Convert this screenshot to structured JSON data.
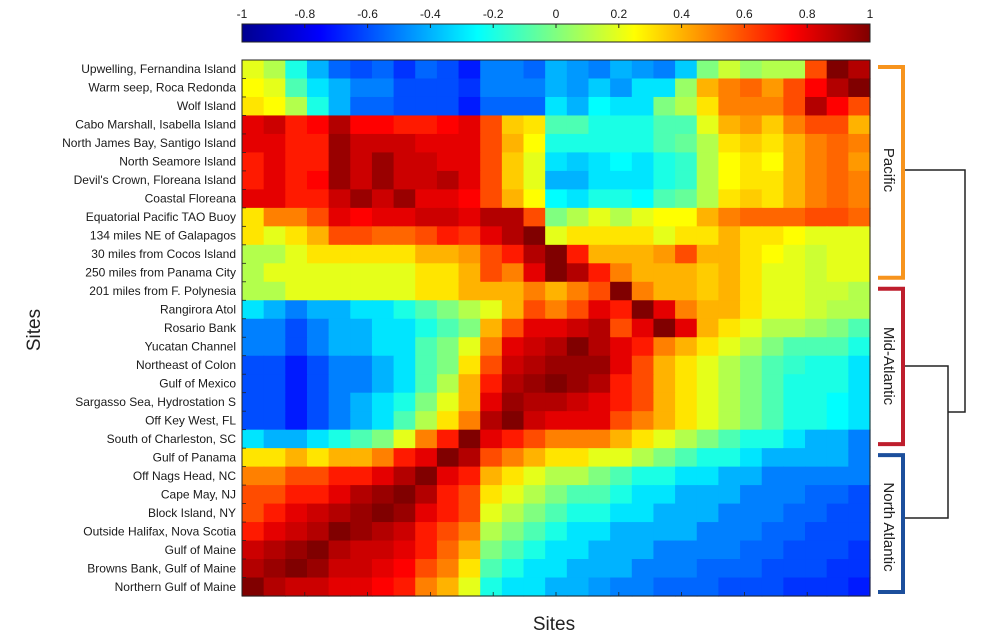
{
  "chart_data": {
    "type": "heatmap",
    "xlabel": "Sites",
    "ylabel": "Sites",
    "sites": [
      "Upwelling, Fernandina Island",
      "Warm seep, Roca Redonda",
      "Wolf Island",
      "Cabo Marshall, Isabella Island",
      "North James Bay, Santigo Island",
      "North Seamore Island",
      "Devil's Crown, Floreana Island",
      "Coastal Floreana",
      "Equatorial Pacific TAO Buoy",
      "134 miles NE of Galapagos",
      "30 miles from Cocos Island",
      "250 miles from Panama City",
      "201 miles from F. Polynesia",
      "Rangirora Atol",
      "Rosario Bank",
      "Yucatan Channel",
      "Northeast of Colon",
      "Gulf of Mexico",
      "Sargasso Sea, Hydrostation S",
      "Off Key West, FL",
      "South of Charleston, SC",
      "Gulf of Panama",
      "Off Nags Head, NC",
      "Cape May, NJ",
      "Block Island, NY",
      "Outside Halifax, Nova Scotia",
      "Gulf of Maine",
      "Browns Bank, Gulf of Maine",
      "Northern Gulf of Maine"
    ],
    "colorbar": {
      "min": -1,
      "max": 1,
      "ticks": [
        "-1",
        "-0.8",
        "-0.6",
        "-0.4",
        "-0.2",
        "0",
        "0.2",
        "0.4",
        "0.6",
        "0.8",
        "1"
      ],
      "colormap": "jet"
    },
    "groups": [
      {
        "name": "Pacific",
        "color": "#f7941d",
        "first_row": 0,
        "last_row": 11
      },
      {
        "name": "Mid-Atlantic",
        "color": "#be1e2d",
        "first_row": 12,
        "last_row": 20
      },
      {
        "name": "North Atlantic",
        "color": "#1c4f9c",
        "first_row": 21,
        "last_row": 28
      }
    ],
    "dendrogram": "North Atlantic and Mid-Atlantic join first, then join Pacific",
    "note": "Cell values are approximate correlations from -1 to 1; row order is listed top to bottom, columns in reverse order (Northern Gulf of Maine at left).",
    "values": [
      [
        0.2,
        0.1,
        -0.2,
        -0.4,
        -0.55,
        -0.6,
        -0.55,
        -0.65,
        -0.55,
        -0.6,
        -0.7,
        -0.5,
        -0.5,
        -0.55,
        -0.4,
        -0.45,
        -0.5,
        -0.4,
        -0.45,
        -0.5,
        -0.35,
        0.0,
        0.15,
        0.05,
        0.1,
        0.1,
        0.6,
        1.0,
        0.9
      ],
      [
        0.25,
        0.2,
        -0.1,
        -0.3,
        -0.4,
        -0.5,
        -0.5,
        -0.6,
        -0.6,
        -0.6,
        -0.65,
        -0.5,
        -0.5,
        -0.5,
        -0.4,
        -0.45,
        -0.35,
        -0.45,
        -0.3,
        -0.3,
        0.05,
        0.4,
        0.5,
        0.55,
        0.45,
        0.6,
        0.75,
        0.9,
        1.0
      ],
      [
        0.3,
        0.25,
        0.1,
        -0.2,
        -0.4,
        -0.55,
        -0.55,
        -0.6,
        -0.6,
        -0.6,
        -0.7,
        -0.55,
        -0.55,
        -0.55,
        -0.3,
        -0.4,
        -0.25,
        -0.3,
        -0.3,
        0.0,
        0.1,
        0.3,
        0.5,
        0.5,
        0.5,
        0.6,
        0.9,
        0.75,
        0.6
      ],
      [
        0.8,
        0.85,
        0.7,
        0.75,
        0.9,
        0.75,
        0.75,
        0.7,
        0.7,
        0.75,
        0.8,
        0.6,
        0.35,
        0.3,
        -0.1,
        -0.1,
        -0.2,
        -0.2,
        -0.2,
        -0.1,
        -0.1,
        0.2,
        0.4,
        0.45,
        0.35,
        0.5,
        0.6,
        0.6,
        0.4
      ],
      [
        0.8,
        0.8,
        0.7,
        0.7,
        0.95,
        0.85,
        0.85,
        0.85,
        0.8,
        0.8,
        0.8,
        0.6,
        0.4,
        0.25,
        -0.2,
        -0.2,
        -0.2,
        -0.2,
        -0.2,
        -0.1,
        -0.05,
        0.1,
        0.3,
        0.35,
        0.3,
        0.4,
        0.5,
        0.55,
        0.5
      ],
      [
        0.7,
        0.8,
        0.7,
        0.7,
        0.95,
        0.85,
        0.95,
        0.85,
        0.85,
        0.8,
        0.8,
        0.6,
        0.35,
        0.2,
        -0.3,
        -0.35,
        -0.3,
        -0.25,
        -0.3,
        -0.2,
        -0.15,
        0.1,
        0.25,
        0.3,
        0.25,
        0.4,
        0.5,
        0.55,
        0.45
      ],
      [
        0.7,
        0.8,
        0.7,
        0.75,
        0.95,
        0.85,
        0.95,
        0.85,
        0.85,
        0.9,
        0.8,
        0.6,
        0.35,
        0.2,
        -0.4,
        -0.4,
        -0.3,
        -0.3,
        -0.3,
        -0.2,
        -0.15,
        0.1,
        0.25,
        0.3,
        0.3,
        0.4,
        0.5,
        0.55,
        0.5
      ],
      [
        0.8,
        0.8,
        0.7,
        0.7,
        0.85,
        0.95,
        0.85,
        0.95,
        0.8,
        0.8,
        0.75,
        0.6,
        0.4,
        0.25,
        -0.25,
        -0.3,
        -0.2,
        -0.2,
        -0.25,
        -0.1,
        -0.05,
        0.1,
        0.3,
        0.35,
        0.3,
        0.4,
        0.5,
        0.55,
        0.5
      ],
      [
        0.3,
        0.5,
        0.5,
        0.6,
        0.8,
        0.75,
        0.8,
        0.8,
        0.85,
        0.85,
        0.8,
        0.9,
        0.9,
        0.6,
        0.0,
        0.1,
        0.2,
        0.1,
        0.2,
        0.25,
        0.25,
        0.4,
        0.5,
        0.55,
        0.55,
        0.55,
        0.6,
        0.6,
        0.55
      ],
      [
        0.3,
        0.2,
        0.3,
        0.4,
        0.6,
        0.6,
        0.55,
        0.55,
        0.6,
        0.7,
        0.65,
        0.8,
        0.9,
        1.0,
        0.2,
        0.3,
        0.3,
        0.3,
        0.3,
        0.2,
        0.3,
        0.3,
        0.4,
        0.3,
        0.3,
        0.25,
        0.2,
        0.2,
        0.2
      ],
      [
        0.1,
        0.1,
        0.2,
        0.3,
        0.3,
        0.3,
        0.3,
        0.3,
        0.4,
        0.4,
        0.45,
        0.6,
        0.7,
        0.9,
        1.0,
        0.7,
        0.4,
        0.4,
        0.4,
        0.45,
        0.6,
        0.4,
        0.4,
        0.3,
        0.25,
        0.2,
        0.15,
        0.2,
        0.2
      ],
      [
        0.1,
        0.2,
        0.2,
        0.2,
        0.2,
        0.2,
        0.2,
        0.2,
        0.3,
        0.3,
        0.4,
        0.6,
        0.5,
        0.8,
        1.0,
        0.9,
        0.7,
        0.5,
        0.4,
        0.4,
        0.4,
        0.35,
        0.4,
        0.3,
        0.2,
        0.2,
        0.15,
        0.2,
        0.2
      ],
      [
        0.1,
        0.1,
        0.2,
        0.2,
        0.2,
        0.2,
        0.2,
        0.2,
        0.3,
        0.3,
        0.4,
        0.4,
        0.4,
        0.5,
        0.4,
        0.5,
        0.6,
        1.0,
        0.5,
        0.4,
        0.4,
        0.35,
        0.4,
        0.3,
        0.2,
        0.2,
        0.15,
        0.15,
        0.1
      ],
      [
        -0.3,
        -0.4,
        -0.5,
        -0.4,
        -0.4,
        -0.3,
        -0.3,
        -0.2,
        -0.1,
        0.0,
        0.1,
        0.2,
        0.4,
        0.6,
        0.5,
        0.6,
        0.8,
        0.7,
        1.0,
        0.8,
        0.5,
        0.4,
        0.4,
        0.3,
        0.2,
        0.2,
        0.15,
        0.1,
        0.1
      ],
      [
        -0.5,
        -0.5,
        -0.6,
        -0.5,
        -0.4,
        -0.4,
        -0.3,
        -0.3,
        -0.2,
        -0.1,
        0.0,
        0.4,
        0.6,
        0.8,
        0.8,
        0.85,
        0.9,
        0.6,
        0.8,
        1.0,
        0.8,
        0.4,
        0.3,
        0.2,
        0.1,
        0.1,
        0.05,
        0.0,
        -0.1
      ],
      [
        -0.5,
        -0.5,
        -0.6,
        -0.5,
        -0.4,
        -0.4,
        -0.3,
        -0.3,
        -0.1,
        0.0,
        0.2,
        0.5,
        0.8,
        0.85,
        0.9,
        1.0,
        0.9,
        0.8,
        0.7,
        0.5,
        0.4,
        0.3,
        0.2,
        0.1,
        0.0,
        -0.1,
        -0.1,
        -0.1,
        -0.2
      ],
      [
        -0.6,
        -0.6,
        -0.7,
        -0.6,
        -0.5,
        -0.5,
        -0.4,
        -0.3,
        -0.1,
        0.0,
        0.3,
        0.6,
        0.85,
        0.9,
        0.95,
        0.95,
        0.95,
        0.8,
        0.6,
        0.4,
        0.3,
        0.2,
        0.1,
        0.0,
        -0.1,
        -0.15,
        -0.2,
        -0.2,
        -0.3
      ],
      [
        -0.6,
        -0.6,
        -0.7,
        -0.6,
        -0.5,
        -0.5,
        -0.4,
        -0.3,
        -0.1,
        0.1,
        0.4,
        0.7,
        0.9,
        0.95,
        1.0,
        0.95,
        0.9,
        0.7,
        0.6,
        0.4,
        0.3,
        0.2,
        0.1,
        0.0,
        -0.1,
        -0.2,
        -0.2,
        -0.2,
        -0.3
      ],
      [
        -0.6,
        -0.6,
        -0.7,
        -0.6,
        -0.5,
        -0.4,
        -0.3,
        -0.2,
        0.0,
        0.2,
        0.4,
        0.8,
        0.95,
        0.9,
        0.9,
        0.85,
        0.8,
        0.7,
        0.6,
        0.4,
        0.3,
        0.2,
        0.1,
        0.0,
        -0.1,
        -0.2,
        -0.2,
        -0.25,
        -0.3
      ],
      [
        -0.6,
        -0.6,
        -0.7,
        -0.6,
        -0.5,
        -0.4,
        -0.3,
        -0.1,
        0.1,
        0.3,
        0.5,
        0.9,
        1.0,
        0.85,
        0.8,
        0.8,
        0.8,
        0.6,
        0.5,
        0.4,
        0.3,
        0.2,
        0.1,
        0.0,
        -0.1,
        -0.2,
        -0.2,
        -0.25,
        -0.3
      ],
      [
        -0.3,
        -0.4,
        -0.4,
        -0.3,
        -0.2,
        -0.1,
        0.0,
        0.2,
        0.5,
        0.7,
        1.0,
        0.8,
        0.7,
        0.6,
        0.5,
        0.5,
        0.5,
        0.4,
        0.3,
        0.2,
        0.1,
        0.0,
        -0.1,
        -0.2,
        -0.2,
        -0.3,
        -0.4,
        -0.4,
        -0.5
      ],
      [
        0.3,
        0.3,
        0.4,
        0.3,
        0.4,
        0.4,
        0.5,
        0.7,
        0.8,
        1.0,
        0.9,
        0.6,
        0.5,
        0.4,
        0.3,
        0.3,
        0.2,
        0.2,
        0.1,
        0.0,
        -0.1,
        -0.2,
        -0.2,
        -0.3,
        -0.4,
        -0.4,
        -0.4,
        -0.4,
        -0.5
      ],
      [
        0.5,
        0.5,
        0.6,
        0.6,
        0.7,
        0.7,
        0.8,
        0.9,
        1.0,
        0.8,
        0.7,
        0.4,
        0.3,
        0.2,
        0.1,
        0.1,
        0.0,
        -0.1,
        -0.2,
        -0.2,
        -0.3,
        -0.3,
        -0.4,
        -0.4,
        -0.5,
        -0.5,
        -0.5,
        -0.5,
        -0.5
      ],
      [
        0.6,
        0.6,
        0.7,
        0.7,
        0.8,
        0.9,
        0.95,
        1.0,
        0.9,
        0.7,
        0.6,
        0.3,
        0.2,
        0.1,
        0.0,
        -0.1,
        -0.1,
        -0.2,
        -0.3,
        -0.3,
        -0.4,
        -0.4,
        -0.4,
        -0.5,
        -0.5,
        -0.5,
        -0.55,
        -0.55,
        -0.6
      ],
      [
        0.6,
        0.7,
        0.8,
        0.85,
        0.9,
        0.95,
        1.0,
        0.95,
        0.8,
        0.7,
        0.6,
        0.2,
        0.1,
        0.0,
        -0.1,
        -0.2,
        -0.2,
        -0.3,
        -0.3,
        -0.4,
        -0.4,
        -0.4,
        -0.5,
        -0.5,
        -0.5,
        -0.55,
        -0.55,
        -0.6,
        -0.6
      ],
      [
        0.7,
        0.8,
        0.85,
        0.9,
        1.0,
        0.95,
        0.9,
        0.85,
        0.7,
        0.6,
        0.5,
        0.1,
        0.0,
        -0.1,
        -0.2,
        -0.3,
        -0.3,
        -0.4,
        -0.4,
        -0.4,
        -0.4,
        -0.5,
        -0.5,
        -0.5,
        -0.55,
        -0.55,
        -0.6,
        -0.6,
        -0.6
      ],
      [
        0.85,
        0.9,
        0.95,
        1.0,
        0.9,
        0.85,
        0.85,
        0.8,
        0.7,
        0.55,
        0.4,
        0.0,
        -0.1,
        -0.2,
        -0.3,
        -0.3,
        -0.4,
        -0.4,
        -0.4,
        -0.5,
        -0.5,
        -0.5,
        -0.5,
        -0.55,
        -0.55,
        -0.6,
        -0.6,
        -0.6,
        -0.65
      ],
      [
        0.9,
        0.95,
        1.0,
        0.95,
        0.85,
        0.85,
        0.8,
        0.75,
        0.6,
        0.5,
        0.3,
        -0.1,
        -0.2,
        -0.3,
        -0.3,
        -0.4,
        -0.4,
        -0.4,
        -0.5,
        -0.5,
        -0.5,
        -0.55,
        -0.55,
        -0.55,
        -0.6,
        -0.6,
        -0.6,
        -0.65,
        -0.65
      ],
      [
        1.0,
        0.9,
        0.85,
        0.85,
        0.8,
        0.8,
        0.75,
        0.7,
        0.5,
        0.4,
        0.2,
        -0.2,
        -0.3,
        -0.3,
        -0.4,
        -0.4,
        -0.45,
        -0.5,
        -0.5,
        -0.55,
        -0.55,
        -0.55,
        -0.6,
        -0.6,
        -0.6,
        -0.65,
        -0.65,
        -0.65,
        -0.7
      ]
    ]
  }
}
